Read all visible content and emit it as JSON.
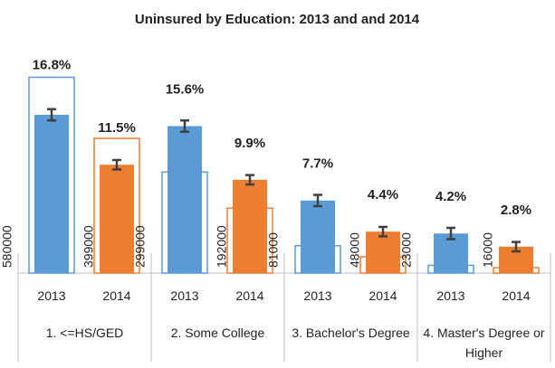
{
  "chart_data": {
    "type": "bar",
    "title": "Uninsured by Education: 2013 and and 2014",
    "categories": [
      "1. <=HS/GED",
      "2. Some College",
      "3. Bachelor's Degree",
      "4. Master's Degree or Higher"
    ],
    "ylim": [
      0,
      21.5
    ],
    "y2lim": [
      0,
      600000
    ],
    "series": [
      {
        "name": "2013",
        "color": "#5b9bd5",
        "values": [
          16.8,
          15.6,
          7.7,
          4.2
        ],
        "value_labels": [
          "16.8%",
          "15.6%",
          "7.7%",
          "4.2%"
        ],
        "errors": [
          0.6,
          0.6,
          0.6,
          0.6
        ],
        "counts": [
          580000,
          299000,
          81000,
          23000
        ]
      },
      {
        "name": "2014",
        "color": "#ed7d31",
        "values": [
          11.5,
          9.9,
          4.4,
          2.8
        ],
        "value_labels": [
          "11.5%",
          "9.9%",
          "4.4%",
          "2.8%"
        ],
        "errors": [
          0.5,
          0.5,
          0.5,
          0.5
        ],
        "counts": [
          399000,
          192000,
          48000,
          16000
        ]
      }
    ]
  }
}
